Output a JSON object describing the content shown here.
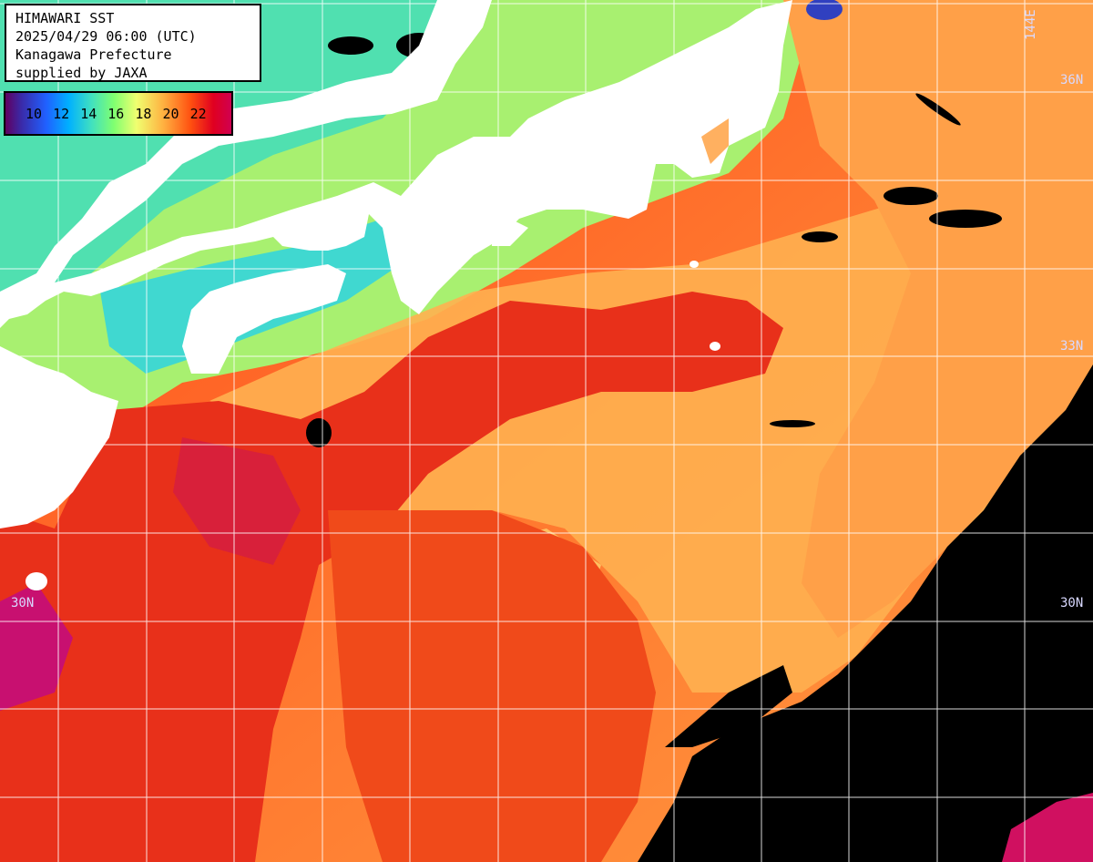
{
  "info": {
    "title": "HIMAWARI SST",
    "datetime": "2025/04/29 06:00 (UTC)",
    "organization": "Kanagawa Prefecture",
    "credit": "supplied by JAXA"
  },
  "legend": {
    "unit_labels": [
      "10",
      "12",
      "14",
      "16",
      "18",
      "20",
      "22"
    ],
    "colors": [
      "#600060",
      "#2060ff",
      "#00b0ff",
      "#80ff70",
      "#ffb040",
      "#ff5010",
      "#d00050"
    ]
  },
  "graticule": {
    "lat_labels": {
      "lat36": "36N",
      "lat33": "33N",
      "lat30_left": "30N",
      "lat30_right": "30N"
    },
    "lon_label": "144E",
    "color": "#ffffff"
  },
  "colors": {
    "land": "#ffffff",
    "no_data": "#000000",
    "warm_core": "#e82a10",
    "warm": "#ff6a20",
    "mild": "#ffa850",
    "cool": "#b0f070",
    "cold": "#60e8c0"
  }
}
